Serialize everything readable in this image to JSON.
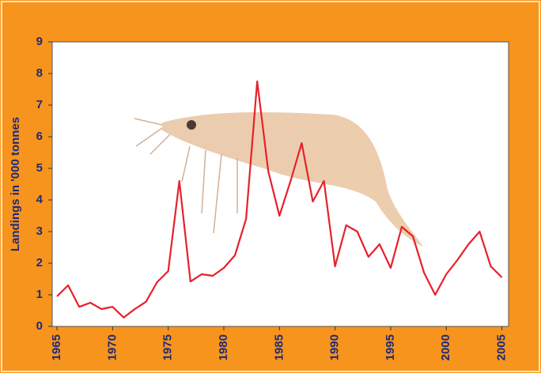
{
  "chart_data": {
    "type": "line",
    "y_label": "Landings in '000 tonnes",
    "x": [
      1965,
      1966,
      1967,
      1968,
      1969,
      1970,
      1971,
      1972,
      1973,
      1974,
      1975,
      1976,
      1977,
      1978,
      1979,
      1980,
      1981,
      1982,
      1983,
      1984,
      1985,
      1986,
      1987,
      1988,
      1989,
      1990,
      1991,
      1992,
      1993,
      1994,
      1995,
      1996,
      1997,
      1998,
      1999,
      2000,
      2001,
      2002,
      2003,
      2004,
      2005
    ],
    "series": [
      {
        "color": "#e8202a",
        "values": [
          0.95,
          1.3,
          0.62,
          0.75,
          0.55,
          0.62,
          0.28,
          0.55,
          0.78,
          1.4,
          1.75,
          4.6,
          1.42,
          1.65,
          1.6,
          1.85,
          2.25,
          3.4,
          7.75,
          4.9,
          3.5,
          4.6,
          5.8,
          3.95,
          4.6,
          1.9,
          3.2,
          3.0,
          2.2,
          2.6,
          1.85,
          3.15,
          2.85,
          1.7,
          1.0,
          1.65,
          2.1,
          2.6,
          3.0,
          1.9,
          1.55
        ]
      }
    ],
    "xlim": [
      1964.57,
      2005.6
    ],
    "xticks": [
      1965,
      1970,
      1975,
      1980,
      1985,
      1990,
      1995,
      2000,
      2005
    ],
    "ylim": [
      0,
      9
    ],
    "yticks": [
      0,
      1,
      2,
      3,
      4,
      5,
      6,
      7,
      8,
      9
    ],
    "grid": false
  }
}
